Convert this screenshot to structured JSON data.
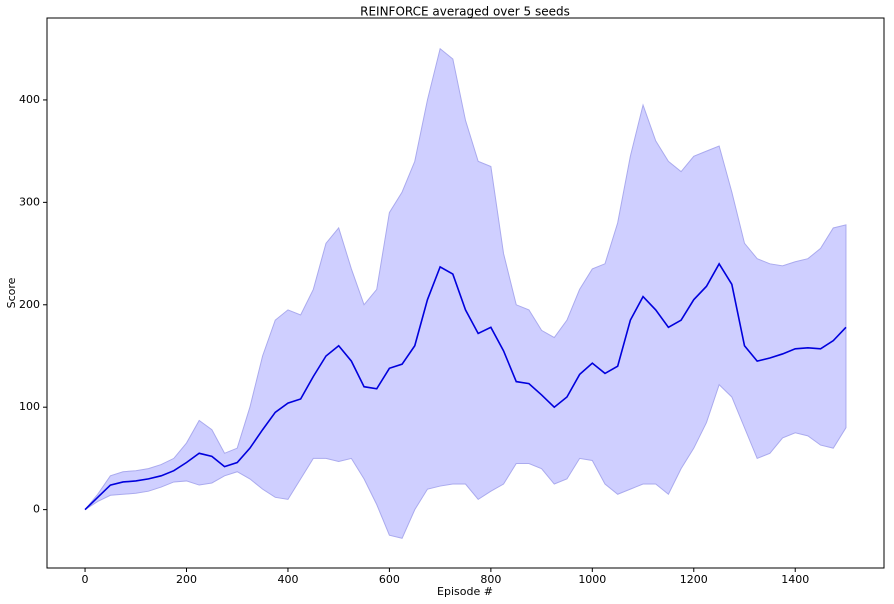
{
  "chart_data": {
    "type": "line",
    "title": "REINFORCE averaged over 5 seeds",
    "x_label": "Episode #",
    "y_label": "Score",
    "x": [
      0,
      25,
      50,
      75,
      100,
      125,
      150,
      175,
      200,
      225,
      250,
      275,
      300,
      325,
      350,
      375,
      400,
      425,
      450,
      475,
      500,
      525,
      550,
      575,
      600,
      625,
      650,
      675,
      700,
      725,
      750,
      775,
      800,
      825,
      850,
      875,
      900,
      925,
      950,
      975,
      1000,
      1025,
      1050,
      1075,
      1100,
      1125,
      1150,
      1175,
      1200,
      1225,
      1250,
      1275,
      1300,
      1325,
      1350,
      1375,
      1400,
      1425,
      1450,
      1475,
      1500
    ],
    "series": [
      {
        "color": "#0000dd",
        "values": [
          0,
          12,
          24,
          27,
          28,
          30,
          33,
          38,
          46,
          55,
          52,
          42,
          46,
          60,
          78,
          95,
          104,
          108,
          130,
          150,
          160,
          145,
          120,
          118,
          138,
          142,
          160,
          205,
          237,
          230,
          195,
          172,
          178,
          155,
          125,
          123,
          112,
          100,
          110,
          132,
          143,
          133,
          140,
          185,
          208,
          195,
          178,
          185,
          205,
          218,
          240,
          220,
          160,
          145,
          148,
          152,
          157,
          158,
          157,
          165,
          178
        ]
      }
    ],
    "band": {
      "color": "#ccccff",
      "lower": [
        0,
        8,
        14,
        15,
        16,
        18,
        22,
        27,
        28,
        24,
        26,
        33,
        37,
        30,
        20,
        12,
        10,
        30,
        50,
        50,
        47,
        50,
        30,
        5,
        -25,
        -28,
        0,
        20,
        23,
        25,
        25,
        10,
        18,
        25,
        45,
        45,
        40,
        25,
        30,
        50,
        48,
        25,
        15,
        20,
        25,
        25,
        15,
        40,
        60,
        85,
        122,
        110,
        80,
        50,
        55,
        70,
        75,
        72,
        63,
        60,
        80
      ],
      "upper": [
        0,
        15,
        33,
        37,
        38,
        40,
        44,
        50,
        65,
        87,
        78,
        55,
        60,
        100,
        150,
        185,
        195,
        190,
        215,
        260,
        275,
        235,
        200,
        215,
        290,
        310,
        340,
        400,
        450,
        440,
        380,
        340,
        335,
        250,
        200,
        195,
        175,
        168,
        185,
        215,
        235,
        240,
        280,
        345,
        395,
        360,
        340,
        330,
        345,
        350,
        355,
        310,
        260,
        245,
        240,
        238,
        242,
        245,
        255,
        275,
        278
      ]
    },
    "xlim": [
      -75,
      1575
    ],
    "ylim": [
      -57,
      480
    ],
    "xticks": [
      0,
      200,
      400,
      600,
      800,
      1000,
      1200,
      1400
    ],
    "yticks": [
      0,
      100,
      200,
      300,
      400
    ]
  }
}
